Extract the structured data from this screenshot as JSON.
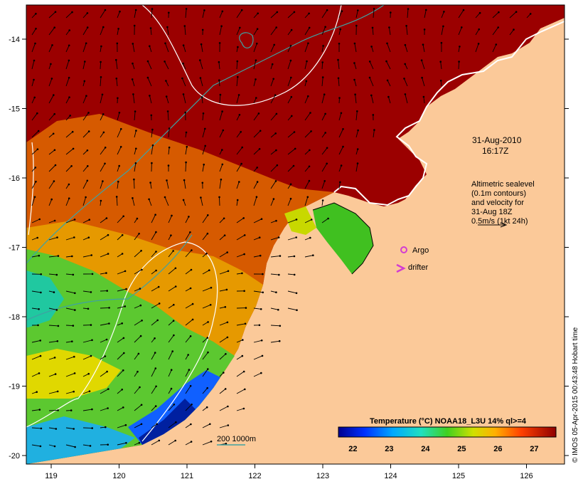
{
  "map": {
    "lon_ticks": [
      "119",
      "120",
      "121",
      "122",
      "123",
      "124",
      "125",
      "126"
    ],
    "lat_ticks": [
      "-14",
      "-15",
      "-16",
      "-17",
      "-18",
      "-19",
      "-20"
    ],
    "timestamp_date": "31-Aug-2010",
    "timestamp_time": "16:17Z",
    "legend_lines": [
      "Altimetric sealevel",
      "(0.1m contours)",
      "and velocity for",
      "31-Aug 18Z",
      "0.5m/s (1kt 24h)"
    ],
    "argo_label": "Argo",
    "drifter_label": "drifter",
    "bathy_label": "200  1000m",
    "credit": "© IMOS 05-Apr-2015 00:43:48 Hobart time",
    "colors": {
      "land": "#fbc999",
      "hot": "#9b0000",
      "argo": "#d23cd2",
      "bathy": "#3fa2a2"
    }
  },
  "colorbar": {
    "title": "Temperature (°C) NOAA18_L3U 14% ql>=4",
    "ticks": [
      "22",
      "23",
      "24",
      "25",
      "26",
      "27"
    ],
    "range": [
      21.6,
      27.6
    ]
  }
}
